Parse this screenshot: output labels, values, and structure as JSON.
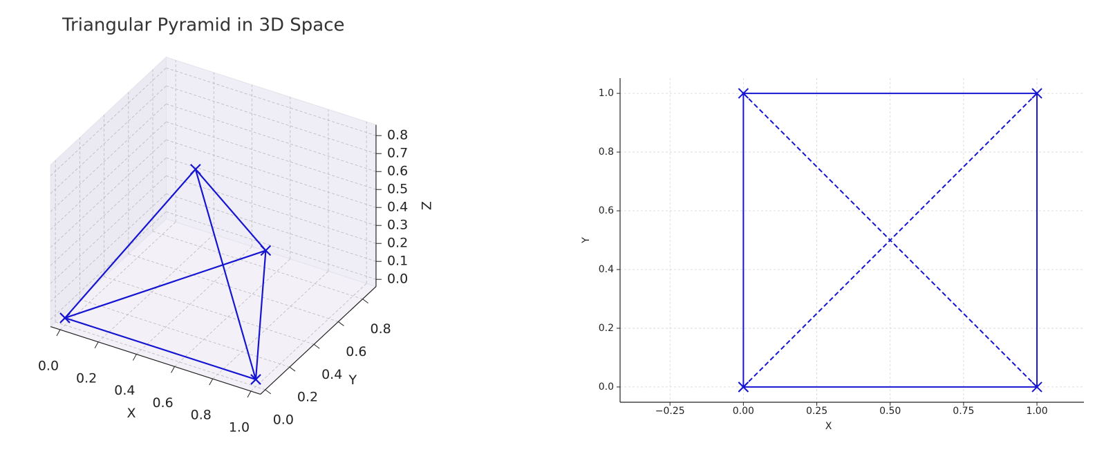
{
  "chart_data": [
    {
      "type": "line3d",
      "title": "Triangular Pyramid in 3D Space",
      "xlabel": "X",
      "ylabel": "Y",
      "zlabel": "Z",
      "xlim": [
        -0.05,
        1.05
      ],
      "ylim": [
        -0.04,
        0.91
      ],
      "zlim": [
        -0.04,
        0.86
      ],
      "xticks": [
        {
          "value": 0,
          "label": "0.0"
        },
        {
          "value": 0.2,
          "label": "0.2"
        },
        {
          "value": 0.4,
          "label": "0.4"
        },
        {
          "value": 0.6,
          "label": "0.6"
        },
        {
          "value": 0.8,
          "label": "0.8"
        },
        {
          "value": 1,
          "label": "1.0"
        }
      ],
      "yticks": [
        {
          "value": 0,
          "label": "0.0"
        },
        {
          "value": 0.2,
          "label": "0.2"
        },
        {
          "value": 0.4,
          "label": "0.4"
        },
        {
          "value": 0.6,
          "label": "0.6"
        },
        {
          "value": 0.8,
          "label": "0.8"
        }
      ],
      "zticks": [
        {
          "value": 0,
          "label": "0.0"
        },
        {
          "value": 0.1,
          "label": "0.1"
        },
        {
          "value": 0.2,
          "label": "0.2"
        },
        {
          "value": 0.3,
          "label": "0.3"
        },
        {
          "value": 0.4,
          "label": "0.4"
        },
        {
          "value": 0.5,
          "label": "0.5"
        },
        {
          "value": 0.6,
          "label": "0.6"
        },
        {
          "value": 0.7,
          "label": "0.7"
        },
        {
          "value": 0.8,
          "label": "0.8"
        }
      ],
      "grid": true,
      "series": [
        {
          "color": "#1414d2",
          "marker": "x",
          "x": [
            0,
            1,
            0.5,
            0,
            0.5,
            1,
            null,
            0.5,
            0.5
          ],
          "y": [
            0,
            0,
            0.866,
            0,
            0.289,
            0,
            null,
            0.289,
            0.866
          ],
          "z": [
            0,
            0,
            0,
            0,
            0.816,
            0,
            null,
            0.816,
            0
          ]
        }
      ]
    },
    {
      "type": "line",
      "xlabel": "X",
      "ylabel": "Y",
      "xlim": [
        -0.42,
        1.16
      ],
      "ylim": [
        -0.052,
        1.052
      ],
      "xticks": [
        {
          "value": -0.25,
          "label": "−0.25"
        },
        {
          "value": 0,
          "label": "0.00"
        },
        {
          "value": 0.25,
          "label": "0.25"
        },
        {
          "value": 0.5,
          "label": "0.50"
        },
        {
          "value": 0.75,
          "label": "0.75"
        },
        {
          "value": 1,
          "label": "1.00"
        }
      ],
      "yticks": [
        {
          "value": 0,
          "label": "0.0"
        },
        {
          "value": 0.2,
          "label": "0.2"
        },
        {
          "value": 0.4,
          "label": "0.4"
        },
        {
          "value": 0.6,
          "label": "0.6"
        },
        {
          "value": 0.8,
          "label": "0.8"
        },
        {
          "value": 1,
          "label": "1.0"
        }
      ],
      "grid": true,
      "series": [
        {
          "color": "#1414d2",
          "linestyle": "solid",
          "marker": "x",
          "x": [
            0,
            1,
            1,
            0,
            0
          ],
          "y": [
            0,
            0,
            1,
            1,
            0
          ]
        },
        {
          "color": "#1414d2",
          "linestyle": "dashed",
          "x": [
            0,
            1,
            null,
            0,
            1
          ],
          "y": [
            0,
            1,
            null,
            1,
            0
          ]
        }
      ]
    }
  ]
}
